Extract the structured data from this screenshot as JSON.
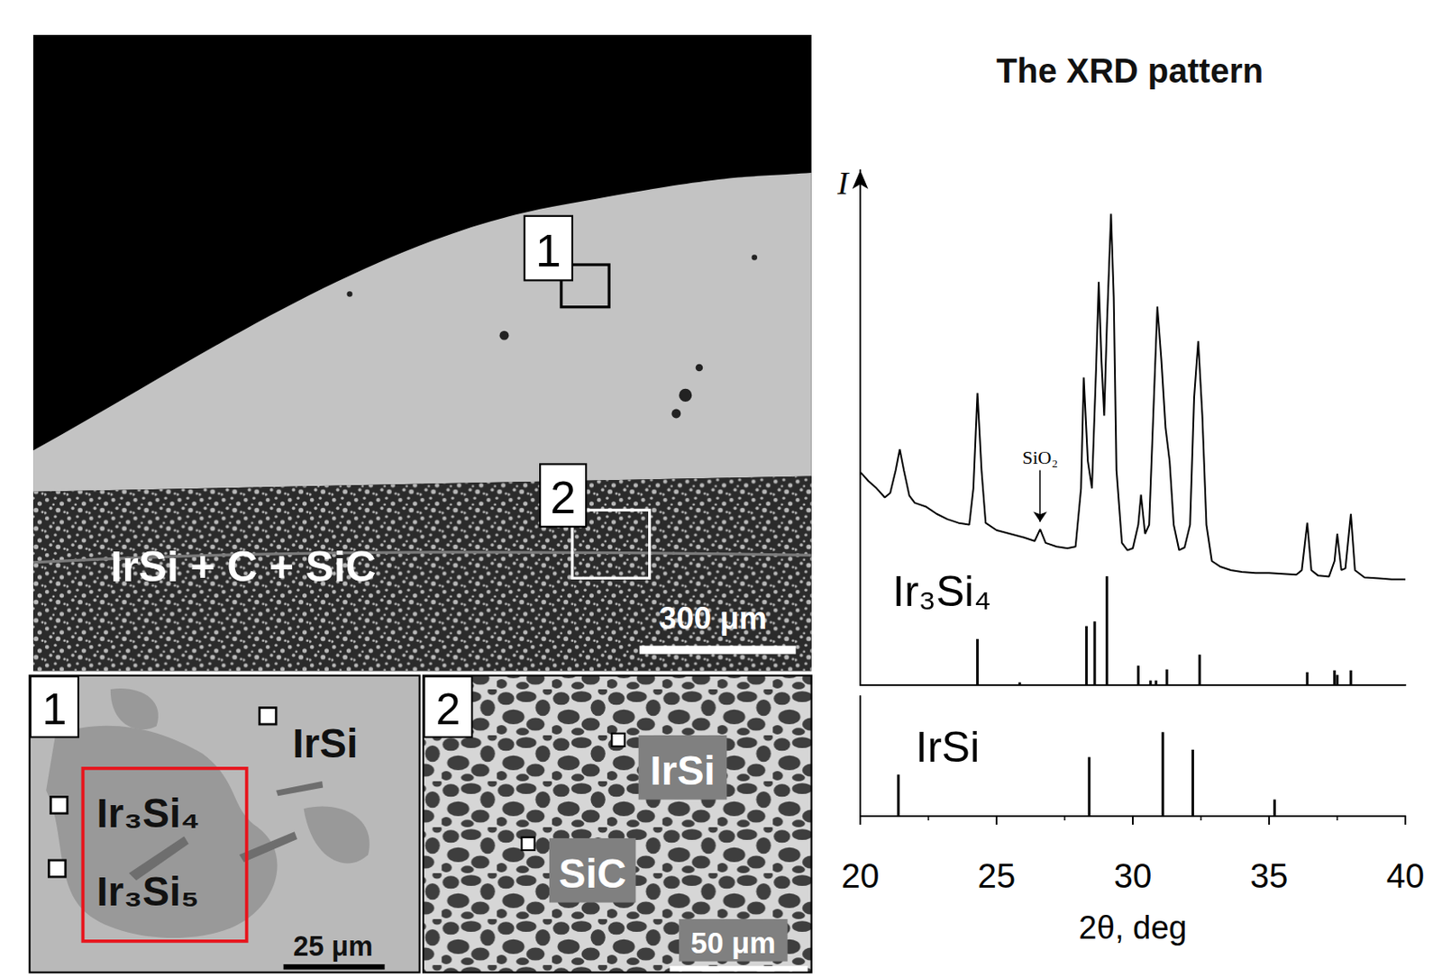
{
  "micrographs": {
    "overview": {
      "labels": [
        "1",
        "2"
      ],
      "phase_label": "IrSi + C + SiC",
      "scale_bar": "300 μm"
    },
    "panels": [
      {
        "number": "1",
        "phases": [
          "IrSi",
          "Ir₃Si₄",
          "Ir₃Si₅"
        ],
        "scale_bar": "25 μm"
      },
      {
        "number": "2",
        "phases": [
          "IrSi",
          "SiC"
        ],
        "scale_bar": "50 μm"
      }
    ]
  },
  "chart_data": {
    "type": "line",
    "title": "The XRD pattern",
    "x_label": "2θ, deg",
    "y_label": "I",
    "xlim": [
      20,
      40
    ],
    "xticks": [
      20,
      25,
      30,
      35,
      40
    ],
    "tick_labels": "x",
    "grid": false,
    "series": [
      {
        "type": "line",
        "color": "#000000",
        "ylim": [
          0,
          470
        ],
        "x": [
          20.0,
          20.3,
          20.6,
          20.9,
          21.1,
          21.3,
          21.45,
          21.6,
          21.8,
          22.0,
          22.4,
          22.8,
          23.2,
          23.6,
          24.0,
          24.15,
          24.3,
          24.45,
          24.6,
          25.0,
          25.5,
          26.0,
          26.4,
          26.6,
          26.8,
          27.2,
          27.6,
          27.9,
          28.1,
          28.2,
          28.35,
          28.5,
          28.65,
          28.75,
          28.85,
          28.95,
          29.05,
          29.2,
          29.3,
          29.4,
          29.6,
          29.8,
          30.0,
          30.2,
          30.3,
          30.45,
          30.6,
          30.75,
          30.9,
          31.05,
          31.2,
          31.35,
          31.5,
          31.7,
          31.9,
          32.1,
          32.25,
          32.4,
          32.55,
          32.7,
          32.9,
          33.2,
          33.6,
          34.0,
          34.5,
          35.0,
          35.5,
          36.0,
          36.2,
          36.4,
          36.55,
          36.8,
          37.2,
          37.4,
          37.5,
          37.65,
          37.8,
          38.0,
          38.15,
          38.5,
          39.0,
          39.5,
          40.0
        ],
        "values": [
          138,
          128,
          120,
          110,
          115,
          140,
          163,
          140,
          112,
          104,
          100,
          92,
          86,
          82,
          80,
          120,
          225,
          140,
          82,
          74,
          70,
          66,
          62,
          75,
          60,
          56,
          54,
          56,
          120,
          242,
          150,
          120,
          250,
          347,
          260,
          200,
          300,
          422,
          330,
          140,
          60,
          52,
          54,
          80,
          113,
          70,
          80,
          200,
          320,
          260,
          187,
          150,
          80,
          52,
          55,
          80,
          220,
          282,
          200,
          80,
          40,
          34,
          30,
          28,
          27,
          27,
          26,
          25,
          30,
          82,
          30,
          24,
          23,
          40,
          70,
          30,
          32,
          92,
          30,
          22,
          21,
          20,
          20
        ]
      },
      {
        "name": "Ir₃Si₄",
        "type": "bar",
        "color": "#000000",
        "ylim": [
          0,
          120
        ],
        "x": [
          24.3,
          25.85,
          28.3,
          28.6,
          29.05,
          30.2,
          30.65,
          30.85,
          31.25,
          32.45,
          36.4,
          37.4,
          37.5,
          38.0
        ],
        "values": [
          50,
          3,
          64,
          69,
          118,
          21,
          5,
          5,
          17,
          33,
          14,
          16,
          11,
          16
        ]
      },
      {
        "name": "IrSi",
        "type": "bar",
        "color": "#000000",
        "ylim": [
          0,
          130
        ],
        "x": [
          21.4,
          28.4,
          31.1,
          32.2,
          35.2
        ],
        "values": [
          45,
          64,
          91,
          72,
          18
        ]
      }
    ],
    "annotations": [
      {
        "text": "SiO₂",
        "x": 26.6,
        "y": 75
      }
    ]
  }
}
